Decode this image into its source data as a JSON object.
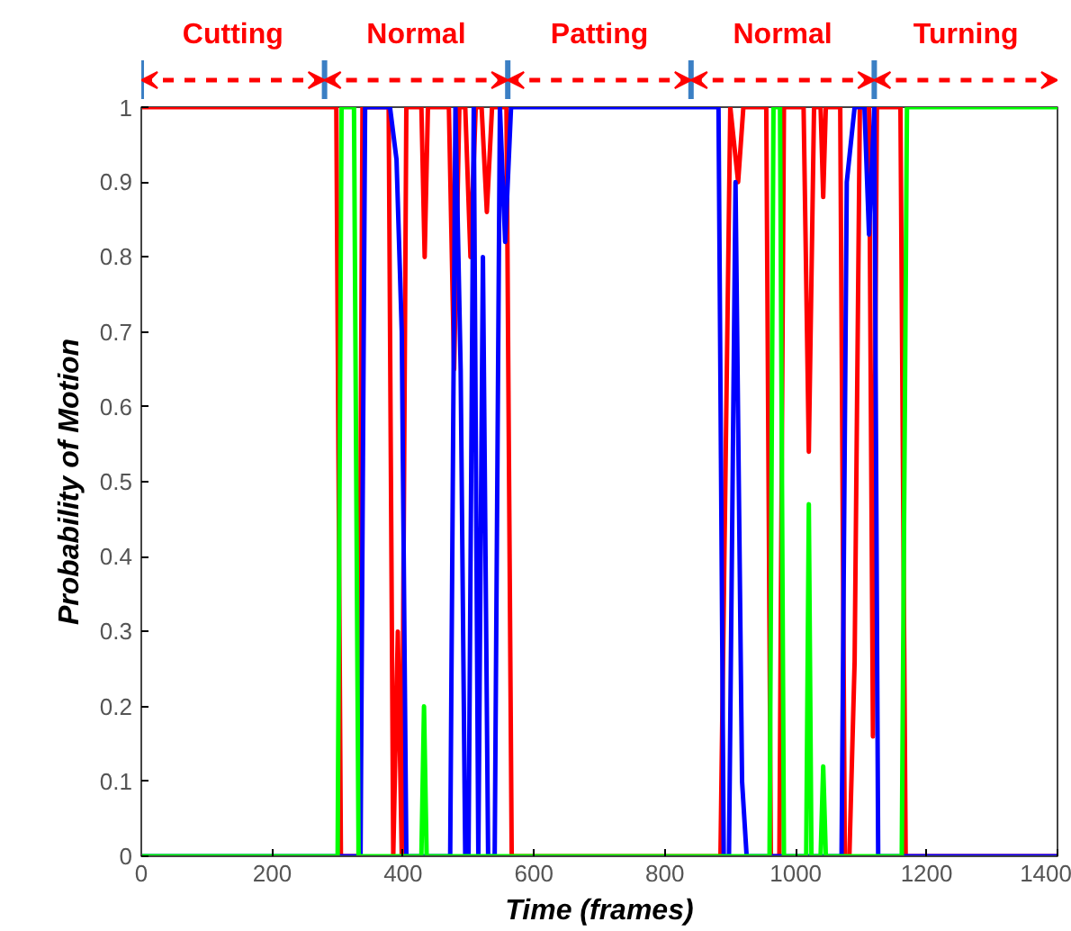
{
  "chart_data": {
    "type": "line",
    "xlabel": "Time (frames)",
    "ylabel": "Probability of Motion",
    "xlim": [
      0,
      1400
    ],
    "ylim": [
      0,
      1
    ],
    "xticks": [
      0,
      200,
      400,
      600,
      800,
      1000,
      1200,
      1400
    ],
    "yticks": [
      0,
      0.1,
      0.2,
      0.3,
      0.4,
      0.5,
      0.6,
      0.7,
      0.8,
      0.9,
      1
    ],
    "grid": false,
    "marker": "none",
    "line_style": "solid",
    "annotations": [
      "Cutting",
      "Normal",
      "Patting",
      "Normal",
      "Turning"
    ],
    "series": [
      {
        "color": "#ff0000",
        "x": [
          0,
          298,
          305,
          332,
          338,
          378,
          385,
          392,
          398,
          405,
          428,
          433,
          438,
          470,
          478,
          486,
          495,
          503,
          511,
          520,
          528,
          536,
          558,
          566,
          885,
          900,
          912,
          920,
          955,
          962,
          975,
          982,
          1012,
          1020,
          1028,
          1038,
          1042,
          1046,
          1068,
          1075,
          1082,
          1090,
          1098,
          1112,
          1118,
          1124,
          1160,
          1168,
          1400
        ],
        "values": [
          1,
          1,
          0,
          0,
          1,
          1,
          0,
          0.3,
          0,
          1,
          1,
          0.8,
          1,
          1,
          0.65,
          1,
          1,
          0.8,
          1,
          1,
          0.86,
          1,
          1,
          0,
          0,
          1,
          0.9,
          1,
          1,
          0,
          0,
          1,
          1,
          0.54,
          1,
          1,
          0.88,
          1,
          1,
          0,
          0,
          0.26,
          1,
          1,
          0.16,
          1,
          1,
          0,
          0
        ]
      },
      {
        "color": "#0000ff",
        "x": [
          0,
          335,
          342,
          380,
          390,
          398,
          405,
          472,
          480,
          488,
          495,
          500,
          508,
          515,
          522,
          530,
          540,
          548,
          556,
          565,
          882,
          890,
          898,
          908,
          918,
          925,
          1070,
          1078,
          1090,
          1105,
          1112,
          1120,
          1126,
          1400
        ],
        "values": [
          0,
          0,
          1,
          1,
          0.93,
          0.7,
          0,
          0,
          1,
          0.65,
          0,
          0,
          1,
          0,
          0.8,
          0,
          0,
          1,
          0.82,
          1,
          1,
          0,
          0,
          0.9,
          0.1,
          0,
          0,
          0.9,
          1,
          1,
          0.83,
          1,
          0,
          0
        ]
      },
      {
        "color": "#00ff00",
        "x": [
          0,
          300,
          306,
          325,
          332,
          428,
          432,
          436,
          960,
          966,
          976,
          982,
          1016,
          1020,
          1024,
          1038,
          1042,
          1046,
          1162,
          1170,
          1400
        ],
        "values": [
          0,
          0,
          1,
          1,
          0,
          0,
          0.2,
          0,
          0,
          1,
          1,
          0,
          0,
          0.47,
          0,
          0,
          0.12,
          0,
          0,
          1,
          1
        ]
      }
    ]
  }
}
